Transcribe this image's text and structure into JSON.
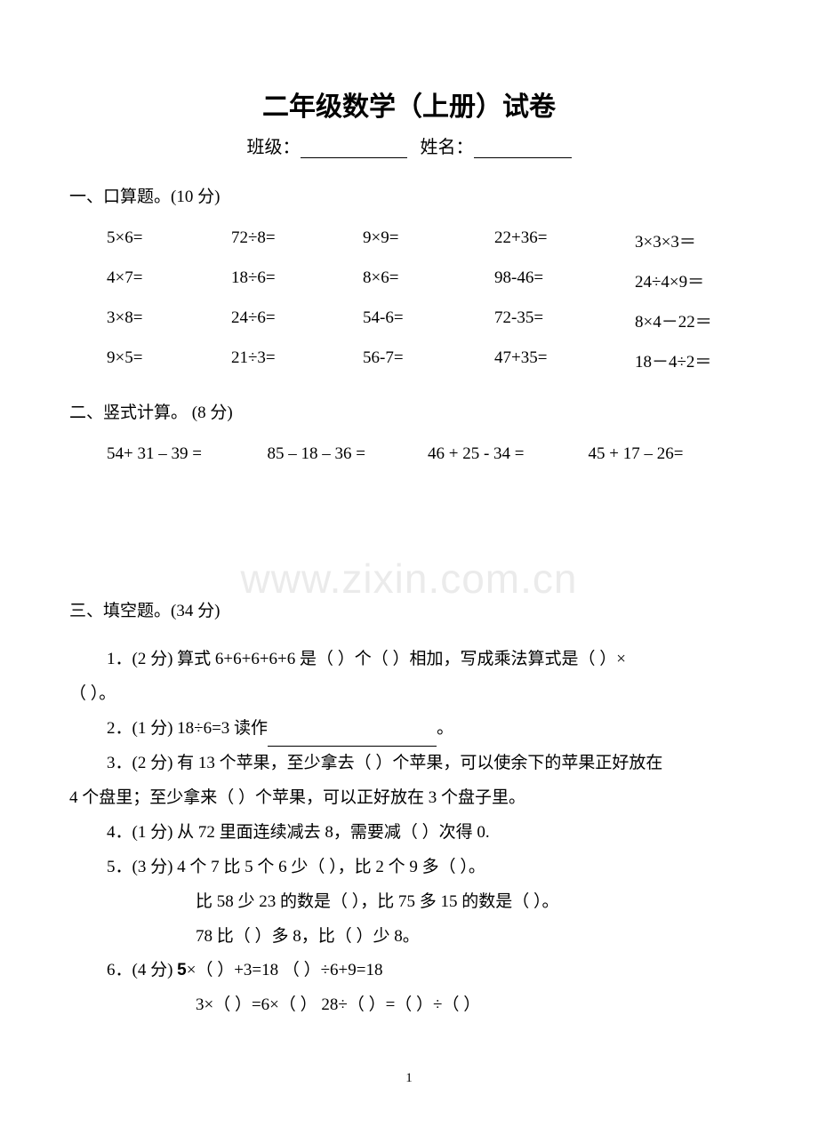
{
  "title": "二年级数学（上册）试卷",
  "subtitle_class": "班级：",
  "subtitle_name": "姓名：",
  "section1": {
    "header": "一、口算题。(10 分)",
    "rows": [
      [
        "5×6=",
        "72÷8=",
        "9×9=",
        "22+36=",
        "3×3×3＝"
      ],
      [
        "4×7=",
        "18÷6=",
        "8×6=",
        "98-46=",
        "24÷4×9＝"
      ],
      [
        "3×8=",
        "24÷6=",
        "54-6=",
        "72-35=",
        "8×4－22＝"
      ],
      [
        "9×5=",
        "21÷3=",
        "56-7=",
        "47+35=",
        "18－4÷2＝"
      ]
    ]
  },
  "section2": {
    "header": "二、竖式计算。 (8 分)",
    "items": [
      "54+ 31 – 39 =",
      "85 – 18 – 36 =",
      "46 + 25 - 34 =",
      "45 + 17 – 26="
    ]
  },
  "watermark": "www.zixin.com.cn",
  "section3": {
    "header": "三、填空题。(34 分)",
    "q1a": "1．(2 分) 算式 6+6+6+6+6 是（  ）个（  ）相加，写成乘法算式是（  ）×",
    "q1b": "（   ）。",
    "q2a": "2．(1 分) 18÷6=3 读作",
    "q2b": "。",
    "q3a": "3．(2 分) 有 13 个苹果，至少拿去（   ）个苹果，可以使余下的苹果正好放在",
    "q3b": "4 个盘里；至少拿来（   ）个苹果，可以正好放在 3 个盘子里。",
    "q4": "4．(1 分) 从 72 里面连续减去 8，需要减（   ）次得 0.",
    "q5a": "5．(3 分) 4 个 7 比 5 个 6 少（   ），比 2 个 9 多（   ）。",
    "q5b": "比 58 少 23 的数是（    ），比 75 多 15 的数是（    ）。",
    "q5c": "78 比（   ）多 8，比（   ）少 8。",
    "q6a_pre": "6．(4 分) ",
    "q6a_bold": "5",
    "q6a_post": "×（    ）+3=18           （    ）÷6+9=18",
    "q6b": "3×（   ）=6×（   ）       28÷（   ）=（   ）÷（   ）"
  },
  "page_number": "1"
}
